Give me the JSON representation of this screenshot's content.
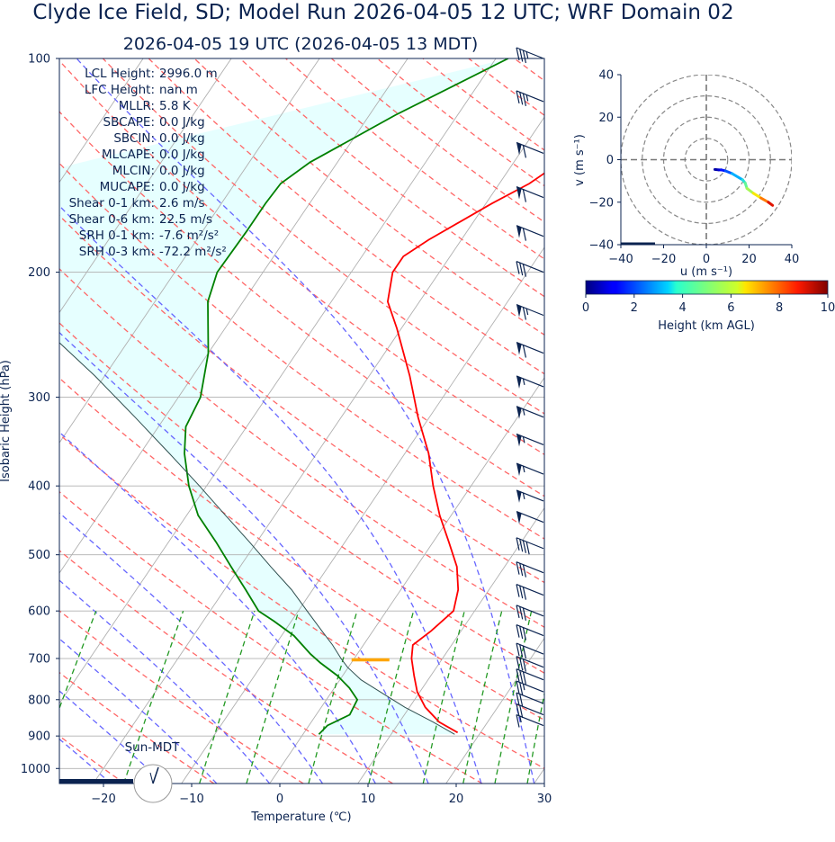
{
  "title": "Clyde Ice Field, SD; Model Run 2026-04-05 12 UTC; WRF Domain 02",
  "subtitle": "2026-04-05 19 UTC  (2026-04-05 13 MDT)",
  "sun_label": "Sun-MDT",
  "colors": {
    "temperature": "#ff0000",
    "dewpoint": "#008000",
    "parcel": "#2f4f4f",
    "cape_fill": "#e0ffff",
    "dry_adiabat": "#ff6666",
    "moist_adiabat": "#6666ff",
    "mixing_ratio": "#229922",
    "isotherm": "#b0b0b0",
    "isobar": "#b0b0b0",
    "barb": "#0b2350",
    "freezing_level_marker": "#ffa500",
    "text": "#0b2350"
  },
  "stats": [
    {
      "label": "LCL Height:",
      "value": "2996.0 m"
    },
    {
      "label": "LFC Height:",
      "value": "nan m"
    },
    {
      "label": "MLLR:",
      "value": "5.8 K"
    },
    {
      "label": "SBCAPE:",
      "value": "0.0 J/kg"
    },
    {
      "label": "SBCIN:",
      "value": "0.0 J/kg"
    },
    {
      "label": "MLCAPE:",
      "value": "0.0 J/kg"
    },
    {
      "label": "MLCIN:",
      "value": "0.0 J/kg"
    },
    {
      "label": "MUCAPE:",
      "value": "0.0 J/kg"
    },
    {
      "label": "Shear 0-1 km:",
      "value": "2.6 m/s"
    },
    {
      "label": "Shear 0-6 km:",
      "value": "22.5 m/s"
    },
    {
      "label": "SRH 0-1 km:",
      "value": "-7.6 m²/s²"
    },
    {
      "label": "SRH 0-3 km:",
      "value": "-72.2 m²/s²"
    }
  ],
  "chart_data": [
    {
      "type": "line",
      "subtype": "skew-T log-P diagram",
      "xlabel": "Temperature (℃)",
      "ylabel": "Isobaric Height (hPa)",
      "xlim": [
        -25,
        30
      ],
      "ylim": [
        1050,
        100
      ],
      "y_scale": "log",
      "x_ticks": [
        "−20",
        "−10",
        "0",
        "10",
        "20",
        "30"
      ],
      "x_tick_values": [
        -20,
        -10,
        0,
        10,
        20,
        30
      ],
      "y_ticks": [
        "1000",
        "900",
        "800",
        "700",
        "600",
        "500",
        "400",
        "300",
        "200",
        "100"
      ],
      "y_tick_values": [
        1000,
        900,
        800,
        700,
        600,
        500,
        400,
        300,
        200,
        100
      ],
      "skew_per_decade": 54.5,
      "grid": true,
      "series": [
        {
          "role": "temperature",
          "points": [
            [
              890,
              17.4
            ],
            [
              860,
              14.5
            ],
            [
              820,
              11.8
            ],
            [
              780,
              9.7
            ],
            [
              740,
              8.1
            ],
            [
              700,
              6.5
            ],
            [
              670,
              5.6
            ],
            [
              640,
              6.6
            ],
            [
              600,
              7.6
            ],
            [
              560,
              6.5
            ],
            [
              520,
              4.6
            ],
            [
              480,
              1.8
            ],
            [
              440,
              -1.3
            ],
            [
              400,
              -4.3
            ],
            [
              360,
              -7.3
            ],
            [
              320,
              -11.3
            ],
            [
              280,
              -15.4
            ],
            [
              240,
              -20.5
            ],
            [
              220,
              -23.6
            ],
            [
              200,
              -25.3
            ],
            [
              190,
              -25.3
            ],
            [
              180,
              -23.7
            ],
            [
              160,
              -19.3
            ],
            [
              150,
              -16.6
            ],
            [
              130,
              -12.7
            ],
            [
              110,
              -11.6
            ],
            [
              100,
              -12.0
            ]
          ]
        },
        {
          "role": "dewpoint",
          "points": [
            [
              895,
              1.8
            ],
            [
              870,
              2.1
            ],
            [
              840,
              3.8
            ],
            [
              800,
              3.5
            ],
            [
              770,
              1.7
            ],
            [
              740,
              -0.6
            ],
            [
              710,
              -3.5
            ],
            [
              690,
              -5.3
            ],
            [
              650,
              -8.6
            ],
            [
              620,
              -12.0
            ],
            [
              600,
              -14.5
            ],
            [
              560,
              -17.6
            ],
            [
              520,
              -21.0
            ],
            [
              480,
              -24.6
            ],
            [
              440,
              -28.7
            ],
            [
              400,
              -32.0
            ],
            [
              360,
              -35.0
            ],
            [
              330,
              -36.9
            ],
            [
              300,
              -37.5
            ],
            [
              260,
              -40.0
            ],
            [
              220,
              -44.0
            ],
            [
              200,
              -45.2
            ],
            [
              175,
              -45.0
            ],
            [
              160,
              -45.0
            ],
            [
              150,
              -44.8
            ],
            [
              140,
              -43.1
            ],
            [
              120,
              -37.0
            ],
            [
              100,
              -28.6
            ]
          ]
        },
        {
          "role": "parcel",
          "points": [
            [
              895,
              17.2
            ],
            [
              860,
              13.8
            ],
            [
              820,
              9.5
            ],
            [
              780,
              5.5
            ],
            [
              750,
              2.4
            ],
            [
              720,
              -0.1
            ],
            [
              700,
              -1.5
            ],
            [
              670,
              -3.5
            ],
            [
              640,
              -5.8
            ],
            [
              600,
              -9.0
            ],
            [
              560,
              -12.4
            ],
            [
              520,
              -16.5
            ],
            [
              480,
              -20.8
            ],
            [
              440,
              -25.6
            ],
            [
              400,
              -30.8
            ],
            [
              360,
              -36.7
            ],
            [
              320,
              -43.4
            ],
            [
              280,
              -51.1
            ],
            [
              240,
              -60.5
            ],
            [
              200,
              -71.8
            ],
            [
              160,
              -85.0
            ]
          ]
        }
      ],
      "freezing_level_hpa": 703,
      "freezing_level_temp": 0,
      "wind_barbs": [
        {
          "p": 100,
          "kt": 35
        },
        {
          "p": 115,
          "kt": 35
        },
        {
          "p": 136,
          "kt": 60
        },
        {
          "p": 157,
          "kt": 60
        },
        {
          "p": 178,
          "kt": 60
        },
        {
          "p": 200,
          "kt": 30
        },
        {
          "p": 230,
          "kt": 65
        },
        {
          "p": 260,
          "kt": 60
        },
        {
          "p": 290,
          "kt": 55
        },
        {
          "p": 320,
          "kt": 55
        },
        {
          "p": 350,
          "kt": 55
        },
        {
          "p": 385,
          "kt": 55
        },
        {
          "p": 420,
          "kt": 55
        },
        {
          "p": 450,
          "kt": 50
        },
        {
          "p": 490,
          "kt": 40
        },
        {
          "p": 530,
          "kt": 30
        },
        {
          "p": 570,
          "kt": 30
        },
        {
          "p": 610,
          "kt": 30
        },
        {
          "p": 650,
          "kt": 30
        },
        {
          "p": 690,
          "kt": 30
        },
        {
          "p": 720,
          "kt": 30
        },
        {
          "p": 750,
          "kt": 30
        },
        {
          "p": 780,
          "kt": 25
        },
        {
          "p": 810,
          "kt": 20
        },
        {
          "p": 840,
          "kt": 20
        },
        {
          "p": 870,
          "kt": 15
        }
      ]
    },
    {
      "type": "line",
      "subtype": "hodograph",
      "xlabel": "u (m s⁻¹)",
      "ylabel": "v (m s⁻¹)",
      "xlim": [
        -40,
        40
      ],
      "ylim": [
        -40,
        40
      ],
      "x_ticks": [
        "−40",
        "−20",
        "0",
        "20",
        "40"
      ],
      "y_ticks": [
        "40",
        "20",
        "0",
        "−20",
        "−40"
      ],
      "tick_values": [
        -40,
        -20,
        0,
        20,
        40
      ],
      "rings": [
        10,
        20,
        30,
        40
      ],
      "points": [
        {
          "u": 4.0,
          "v": -4.6,
          "h": 0.2
        },
        {
          "u": 5.8,
          "v": -4.8,
          "h": 0.5
        },
        {
          "u": 7.0,
          "v": -4.8,
          "h": 1.0
        },
        {
          "u": 9.0,
          "v": -5.3,
          "h": 1.5
        },
        {
          "u": 12.0,
          "v": -6.5,
          "h": 2.5
        },
        {
          "u": 17.0,
          "v": -9.5,
          "h": 3.5
        },
        {
          "u": 18.2,
          "v": -11.0,
          "h": 4.3
        },
        {
          "u": 19.0,
          "v": -13.5,
          "h": 5.0
        },
        {
          "u": 22.0,
          "v": -15.8,
          "h": 6.0
        },
        {
          "u": 25.5,
          "v": -18.0,
          "h": 7.0
        },
        {
          "u": 29.0,
          "v": -20.0,
          "h": 8.5
        },
        {
          "u": 31.0,
          "v": -21.5,
          "h": 9.6
        }
      ]
    },
    {
      "type": "heatmap",
      "subtype": "colorbar",
      "label": "Height (km AGL)",
      "range": [
        0,
        10
      ],
      "ticks": [
        "0",
        "2",
        "4",
        "6",
        "8",
        "10"
      ],
      "tick_values": [
        0,
        2,
        4,
        6,
        8,
        10
      ],
      "colormap": "jet"
    }
  ]
}
